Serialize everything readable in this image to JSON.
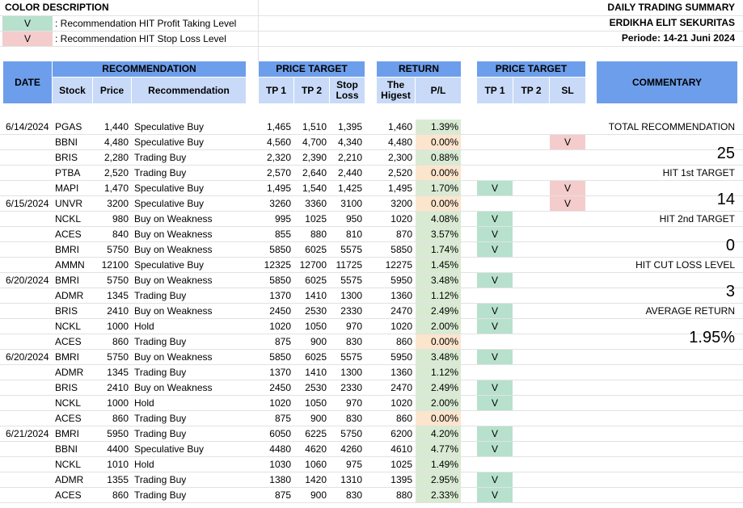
{
  "legend": {
    "title": "COLOR DESCRIPTION",
    "items": [
      {
        "marker": "V",
        "text": ": Recommendation HIT Profit Taking Level"
      },
      {
        "marker": "V",
        "text": ": Recommendation HIT Stop Loss Level"
      }
    ]
  },
  "header_info": {
    "title": "DAILY TRADING SUMMARY",
    "company": "ERDIKHA ELIT SEKURITAS",
    "period": "Periode:  14-21 Juni 2024"
  },
  "columns": {
    "date": "DATE",
    "recommendation_group": "RECOMMENDATION",
    "stock": "Stock",
    "price": "Price",
    "recommendation": "Recommendation",
    "price_target_group": "PRICE TARGET",
    "tp1": "TP 1",
    "tp2": "TP 2",
    "stop_loss": "Stop Loss",
    "return_group": "RETURN",
    "highest": "The Higest",
    "pl": "P/L",
    "hit_group": "PRICE TARGET",
    "hit_tp1": "TP 1",
    "hit_tp2": "TP 2",
    "hit_sl": "SL",
    "commentary": "COMMENTARY"
  },
  "rows": [
    {
      "date": "6/14/2024",
      "stock": "PGAS",
      "price": "1,440",
      "rec": "Speculative Buy",
      "tp1": "1,465",
      "tp2": "1,510",
      "sl": "1,395",
      "high": "1,460",
      "pl": "1.39%",
      "pl_color": "green",
      "h1": "",
      "h2": "",
      "hs": ""
    },
    {
      "date": "",
      "stock": "BBNI",
      "price": "4,480",
      "rec": "Speculative Buy",
      "tp1": "4,560",
      "tp2": "4,700",
      "sl": "4,340",
      "high": "4,480",
      "pl": "0.00%",
      "pl_color": "orange",
      "h1": "",
      "h2": "",
      "hs": "V"
    },
    {
      "date": "",
      "stock": "BRIS",
      "price": "2,280",
      "rec": "Trading Buy",
      "tp1": "2,320",
      "tp2": "2,390",
      "sl": "2,210",
      "high": "2,300",
      "pl": "0.88%",
      "pl_color": "green",
      "h1": "",
      "h2": "",
      "hs": ""
    },
    {
      "date": "",
      "stock": "PTBA",
      "price": "2,520",
      "rec": "Trading Buy",
      "tp1": "2,570",
      "tp2": "2,640",
      "sl": "2,440",
      "high": "2,520",
      "pl": "0.00%",
      "pl_color": "orange",
      "h1": "",
      "h2": "",
      "hs": ""
    },
    {
      "date": "",
      "stock": "MAPI",
      "price": "1,470",
      "rec": "Speculative  Buy",
      "tp1": "1,495",
      "tp2": "1,540",
      "sl": "1,425",
      "high": "1,495",
      "pl": "1.70%",
      "pl_color": "green",
      "h1": "V",
      "h2": "",
      "hs": "V"
    },
    {
      "date": "6/15/2024",
      "stock": "UNVR",
      "price": "3200",
      "rec": "Speculative Buy",
      "tp1": "3260",
      "tp2": "3360",
      "sl": "3100",
      "high": "3200",
      "pl": "0.00%",
      "pl_color": "orange",
      "h1": "",
      "h2": "",
      "hs": "V"
    },
    {
      "date": "",
      "stock": "NCKL",
      "price": "980",
      "rec": "Buy on Weakness",
      "tp1": "995",
      "tp2": "1025",
      "sl": "950",
      "high": "1020",
      "pl": "4.08%",
      "pl_color": "green",
      "h1": "V",
      "h2": "",
      "hs": ""
    },
    {
      "date": "",
      "stock": "ACES",
      "price": "840",
      "rec": "Buy on Weakness",
      "tp1": "855",
      "tp2": "880",
      "sl": "810",
      "high": "870",
      "pl": "3.57%",
      "pl_color": "green",
      "h1": "V",
      "h2": "",
      "hs": ""
    },
    {
      "date": "",
      "stock": "BMRI",
      "price": "5750",
      "rec": "Buy on Weakness",
      "tp1": "5850",
      "tp2": "6025",
      "sl": "5575",
      "high": "5850",
      "pl": "1.74%",
      "pl_color": "green",
      "h1": "V",
      "h2": "",
      "hs": ""
    },
    {
      "date": "",
      "stock": "AMMN",
      "price": "12100",
      "rec": "Speculative Buy",
      "tp1": "12325",
      "tp2": "12700",
      "sl": "11725",
      "high": "12275",
      "pl": "1.45%",
      "pl_color": "green",
      "h1": "",
      "h2": "",
      "hs": ""
    },
    {
      "date": "6/20/2024",
      "stock": "BMRI",
      "price": "5750",
      "rec": "Buy on Weakness",
      "tp1": "5850",
      "tp2": "6025",
      "sl": "5575",
      "high": "5950",
      "pl": "3.48%",
      "pl_color": "green",
      "h1": "V",
      "h2": "",
      "hs": ""
    },
    {
      "date": "",
      "stock": "ADMR",
      "price": "1345",
      "rec": "Trading Buy",
      "tp1": "1370",
      "tp2": "1410",
      "sl": "1300",
      "high": "1360",
      "pl": "1.12%",
      "pl_color": "green",
      "h1": "",
      "h2": "",
      "hs": ""
    },
    {
      "date": "",
      "stock": "BRIS",
      "price": "2410",
      "rec": "Buy on Weakness",
      "tp1": "2450",
      "tp2": "2530",
      "sl": "2330",
      "high": "2470",
      "pl": "2.49%",
      "pl_color": "green",
      "h1": "V",
      "h2": "",
      "hs": ""
    },
    {
      "date": "",
      "stock": "NCKL",
      "price": "1000",
      "rec": "Hold",
      "tp1": "1020",
      "tp2": "1050",
      "sl": "970",
      "high": "1020",
      "pl": "2.00%",
      "pl_color": "green",
      "h1": "V",
      "h2": "",
      "hs": ""
    },
    {
      "date": "",
      "stock": "ACES",
      "price": "860",
      "rec": "Trading Buy",
      "tp1": "875",
      "tp2": "900",
      "sl": "830",
      "high": "860",
      "pl": "0.00%",
      "pl_color": "orange",
      "h1": "",
      "h2": "",
      "hs": ""
    },
    {
      "date": "6/20/2024",
      "stock": "BMRI",
      "price": "5750",
      "rec": "Buy on Weakness",
      "tp1": "5850",
      "tp2": "6025",
      "sl": "5575",
      "high": "5950",
      "pl": "3.48%",
      "pl_color": "green",
      "h1": "V",
      "h2": "",
      "hs": ""
    },
    {
      "date": "",
      "stock": "ADMR",
      "price": "1345",
      "rec": "Trading Buy",
      "tp1": "1370",
      "tp2": "1410",
      "sl": "1300",
      "high": "1360",
      "pl": "1.12%",
      "pl_color": "green",
      "h1": "",
      "h2": "",
      "hs": ""
    },
    {
      "date": "",
      "stock": "BRIS",
      "price": "2410",
      "rec": "Buy on Weakness",
      "tp1": "2450",
      "tp2": "2530",
      "sl": "2330",
      "high": "2470",
      "pl": "2.49%",
      "pl_color": "green",
      "h1": "V",
      "h2": "",
      "hs": ""
    },
    {
      "date": "",
      "stock": "NCKL",
      "price": "1000",
      "rec": "Hold",
      "tp1": "1020",
      "tp2": "1050",
      "sl": "970",
      "high": "1020",
      "pl": "2.00%",
      "pl_color": "green",
      "h1": "V",
      "h2": "",
      "hs": ""
    },
    {
      "date": "",
      "stock": "ACES",
      "price": "860",
      "rec": "Trading Buy",
      "tp1": "875",
      "tp2": "900",
      "sl": "830",
      "high": "860",
      "pl": "0.00%",
      "pl_color": "orange",
      "h1": "",
      "h2": "",
      "hs": ""
    },
    {
      "date": "6/21/2024",
      "stock": "BMRI",
      "price": "5950",
      "rec": "Trading Buy",
      "tp1": "6050",
      "tp2": "6225",
      "sl": "5750",
      "high": "6200",
      "pl": "4.20%",
      "pl_color": "green",
      "h1": "V",
      "h2": "",
      "hs": ""
    },
    {
      "date": "",
      "stock": "BBNI",
      "price": "4400",
      "rec": "Speculative Buy",
      "tp1": "4480",
      "tp2": "4620",
      "sl": "4260",
      "high": "4610",
      "pl": "4.77%",
      "pl_color": "green",
      "h1": "V",
      "h2": "",
      "hs": ""
    },
    {
      "date": "",
      "stock": "NCKL",
      "price": "1010",
      "rec": "Hold",
      "tp1": "1030",
      "tp2": "1060",
      "sl": "975",
      "high": "1025",
      "pl": "1.49%",
      "pl_color": "green",
      "h1": "",
      "h2": "",
      "hs": ""
    },
    {
      "date": "",
      "stock": "ADMR",
      "price": "1355",
      "rec": "Trading Buy",
      "tp1": "1380",
      "tp2": "1420",
      "sl": "1310",
      "high": "1395",
      "pl": "2.95%",
      "pl_color": "green",
      "h1": "V",
      "h2": "",
      "hs": ""
    },
    {
      "date": "",
      "stock": "ACES",
      "price": "860",
      "rec": "Trading Buy",
      "tp1": "875",
      "tp2": "900",
      "sl": "830",
      "high": "880",
      "pl": "2.33%",
      "pl_color": "green",
      "h1": "V",
      "h2": "",
      "hs": ""
    }
  ],
  "commentary": {
    "total_label": "TOTAL RECOMMENDATION",
    "total_value": "25",
    "hit1_label": "HIT 1st TARGET",
    "hit1_value": "14",
    "hit2_label": "HIT 2nd TARGET",
    "hit2_value": "0",
    "cut_label": "HIT CUT LOSS LEVEL",
    "cut_value": "3",
    "avg_label": "AVERAGE RETURN",
    "avg_value": "1.95%"
  },
  "colors": {
    "header_blue": "#6d9eeb",
    "subheader_blue": "#c9daf8",
    "profit_green": "#b7e1cd",
    "pl_green": "#d9ead3",
    "pl_orange": "#fce5cd",
    "stoploss_pink": "#f4cccc"
  }
}
